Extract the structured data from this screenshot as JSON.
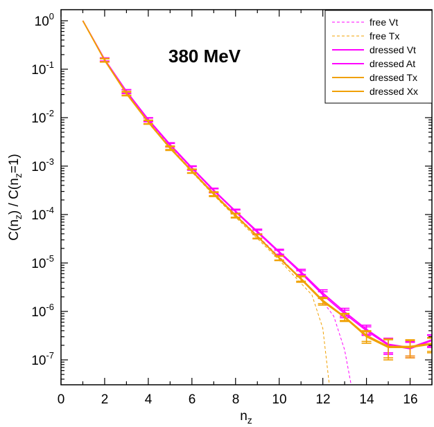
{
  "chart_data": {
    "type": "line",
    "annotation": "380 MeV",
    "xlabel": {
      "base": "n",
      "sub": "z"
    },
    "ylabel": {
      "t1": "C(n",
      "s1": "z",
      "t2": ") / C(n",
      "s2": "z",
      "t3": "=1)"
    },
    "xlim": [
      0,
      17
    ],
    "ylim": [
      3e-08,
      1.8
    ],
    "yscale": "log",
    "x_ticks": [
      0,
      2,
      4,
      6,
      8,
      10,
      12,
      14,
      16
    ],
    "y_ticks": [
      {
        "value": 1,
        "mantissa": "10",
        "exp": "0"
      },
      {
        "value": 0.1,
        "mantissa": "10",
        "exp": "-1"
      },
      {
        "value": 0.01,
        "mantissa": "10",
        "exp": "-2"
      },
      {
        "value": 0.001,
        "mantissa": "10",
        "exp": "-3"
      },
      {
        "value": 0.0001,
        "mantissa": "10",
        "exp": "-4"
      },
      {
        "value": 1e-05,
        "mantissa": "10",
        "exp": "-5"
      },
      {
        "value": 1e-06,
        "mantissa": "10",
        "exp": "-6"
      },
      {
        "value": 1e-07,
        "mantissa": "10",
        "exp": "-7"
      }
    ],
    "series": [
      {
        "name": "free Vt",
        "color": "#ff00ff",
        "style": "dashed",
        "x": [
          1,
          2,
          3,
          4,
          5,
          6,
          7,
          8,
          9,
          10,
          11,
          12,
          12.5,
          13,
          13.3
        ],
        "y": [
          1,
          0.155,
          0.034,
          0.0085,
          0.0025,
          0.00082,
          0.00028,
          0.0001,
          3.7e-05,
          1.35e-05,
          4.8e-06,
          1.6e-06,
          8e-07,
          1.6e-07,
          3e-08
        ]
      },
      {
        "name": "free Tx",
        "color": "#f0a000",
        "style": "dashed",
        "x": [
          1,
          2,
          3,
          4,
          5,
          6,
          7,
          8,
          9,
          10,
          11,
          11.5,
          12,
          12.3
        ],
        "y": [
          1,
          0.15,
          0.032,
          0.0078,
          0.0023,
          0.00075,
          0.00025,
          8.8e-05,
          3.2e-05,
          1.15e-05,
          3.8e-06,
          2.2e-06,
          4.5e-07,
          3e-08
        ]
      },
      {
        "name": "dressed Vt",
        "color": "#ff00ff",
        "style": "solid",
        "x": [
          1,
          2,
          3,
          4,
          5,
          6,
          7,
          8,
          9,
          10,
          11,
          12,
          13,
          14,
          15,
          16,
          17
        ],
        "y": [
          1,
          0.16,
          0.035,
          0.0092,
          0.0028,
          0.00093,
          0.00032,
          0.000118,
          4.5e-05,
          1.72e-05,
          6.6e-06,
          2.4e-06,
          9.8e-07,
          4.3e-07,
          2.1e-07,
          1.8e-07,
          2.6e-07
        ],
        "err": [
          0,
          0.012,
          0.003,
          0.0008,
          0.00024,
          8e-05,
          3e-05,
          1.1e-05,
          5e-06,
          2e-06,
          8e-07,
          4e-07,
          1.8e-07,
          9e-08,
          7e-08,
          6e-08,
          7e-08
        ]
      },
      {
        "name": "dressed At",
        "color": "#ff00ff",
        "style": "solid",
        "x": [
          1,
          2,
          3,
          4,
          5,
          6,
          7,
          8,
          9,
          10,
          11,
          12,
          13,
          14,
          15,
          16,
          17
        ],
        "y": [
          1,
          0.158,
          0.0345,
          0.009,
          0.0027,
          0.0009,
          0.00031,
          0.000114,
          4.3e-05,
          1.65e-05,
          6.2e-06,
          2.2e-06,
          9e-07,
          4e-07,
          2e-07,
          1.7e-07,
          2.5e-07
        ],
        "err": [
          0,
          0.011,
          0.003,
          0.0008,
          0.00023,
          8e-05,
          3e-05,
          1e-05,
          4.5e-06,
          1.8e-06,
          7e-07,
          3.5e-07,
          1.6e-07,
          8e-08,
          7e-08,
          6e-08,
          7e-08
        ]
      },
      {
        "name": "dressed Tx",
        "color": "#f0a000",
        "style": "solid",
        "x": [
          1,
          2,
          3,
          4,
          5,
          6,
          7,
          8,
          9,
          10,
          11,
          12,
          13,
          14,
          15,
          16,
          17
        ],
        "y": [
          1,
          0.155,
          0.032,
          0.0082,
          0.0024,
          0.0008,
          0.00027,
          9.7e-05,
          3.6e-05,
          1.28e-05,
          4.8e-06,
          1.7e-06,
          7.8e-07,
          3.2e-07,
          1.9e-07,
          1.9e-07,
          2.2e-07
        ],
        "err": [
          0,
          0.012,
          0.0028,
          0.0007,
          0.0002,
          7e-05,
          2.5e-05,
          9e-06,
          3.5e-06,
          1.3e-06,
          6e-07,
          2.5e-07,
          1.3e-07,
          8e-08,
          8e-08,
          7e-08,
          7e-08
        ]
      },
      {
        "name": "dressed Xx",
        "color": "#f0a000",
        "style": "solid",
        "x": [
          1,
          2,
          3,
          4,
          5,
          6,
          7,
          8,
          9,
          10,
          11,
          12,
          13,
          14,
          15,
          16,
          17
        ],
        "y": [
          1,
          0.152,
          0.031,
          0.008,
          0.0023,
          0.00078,
          0.00026,
          9.4e-05,
          3.5e-05,
          1.25e-05,
          4.6e-06,
          1.6e-06,
          7.5e-07,
          3e-07,
          1.8e-07,
          1.8e-07,
          2.1e-07
        ],
        "err": [
          0,
          0.012,
          0.0028,
          0.0007,
          0.0002,
          7e-05,
          2.5e-05,
          9e-06,
          3.5e-06,
          1.3e-06,
          6e-07,
          2.5e-07,
          1.3e-07,
          8e-08,
          8e-08,
          7e-08,
          7e-08
        ]
      }
    ]
  }
}
